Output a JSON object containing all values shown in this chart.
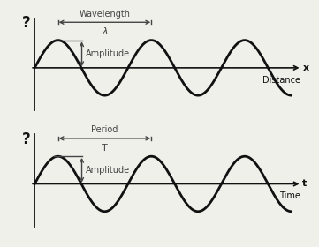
{
  "background_color": "#f0f0eb",
  "wave_color": "#111111",
  "axis_color": "#111111",
  "annotation_color": "#444444",
  "top_panel": {
    "ylabel_symbol": "?",
    "xlabel": "x",
    "xlabel_label": "Distance",
    "wave_label": "Wavelength",
    "wave_symbol": "λ",
    "amplitude_label": "Amplitude"
  },
  "bottom_panel": {
    "ylabel_symbol": "?",
    "xlabel": "t",
    "xlabel_label": "Time",
    "wave_label": "Period",
    "wave_symbol": "T",
    "amplitude_label": "Amplitude"
  },
  "fig_width": 3.61,
  "fig_height": 2.8,
  "dpi": 100,
  "num_cycles": 2.75,
  "wave_lw": 2.0
}
